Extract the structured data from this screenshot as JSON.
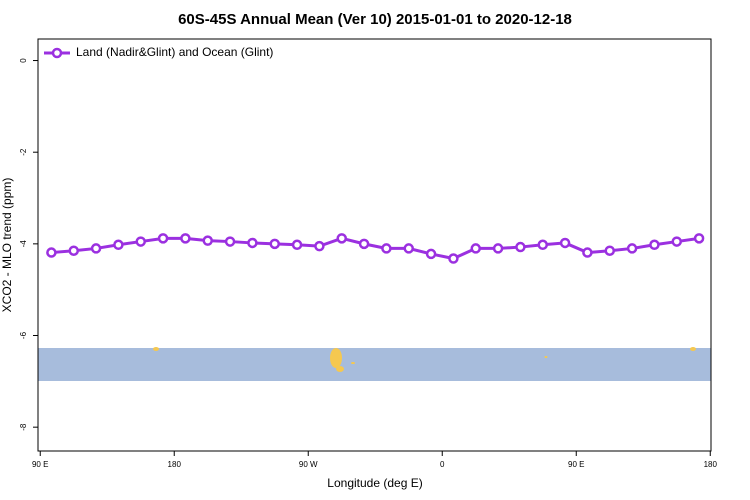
{
  "chart_data": {
    "type": "line",
    "title": "60S-45S Annual Mean (Ver 10)   2015-01-01 to 2020-12-18",
    "x_label": "Longitude (deg E)",
    "y_label": "XCO2 - MLO trend (ppm)",
    "x": [
      97.5,
      112.5,
      127.5,
      142.5,
      157.5,
      172.5,
      187.5,
      202.5,
      217.5,
      232.5,
      247.5,
      262.5,
      277.5,
      292.5,
      307.5,
      322.5,
      337.5,
      352.5,
      367.5,
      382.5,
      397.5,
      412.5,
      427.5,
      442.5,
      457.5,
      472.5,
      487.5,
      502.5,
      517.5,
      532.5
    ],
    "series": [
      {
        "name": "Land (Nadir&Glint) and Ocean (Glint)",
        "color": "#9b30e0",
        "values": [
          -4.19,
          -4.15,
          -4.1,
          -4.02,
          -3.95,
          -3.88,
          -3.88,
          -3.93,
          -3.95,
          -3.98,
          -4.0,
          -4.02,
          -4.05,
          -3.88,
          -4.0,
          -4.1,
          -4.1,
          -4.22,
          -4.32,
          -4.1,
          -4.1,
          -4.07,
          -4.02,
          -3.98,
          -4.19,
          -4.15,
          -4.1,
          -4.02,
          -3.95,
          -3.88
        ]
      }
    ],
    "xlim": [
      88.5,
      540.5
    ],
    "xticks": [
      {
        "value": 90,
        "label": "90 E"
      },
      180,
      {
        "value": 270,
        "label": "90 W"
      },
      {
        "value": 360,
        "label": "0"
      },
      {
        "value": 450,
        "label": "90 E"
      },
      {
        "value": 540,
        "label": "180"
      }
    ],
    "ylim": [
      -8.52,
      0.47
    ],
    "yticks": [
      0,
      -2,
      -4,
      -6,
      -8
    ],
    "legend": "top-left"
  }
}
